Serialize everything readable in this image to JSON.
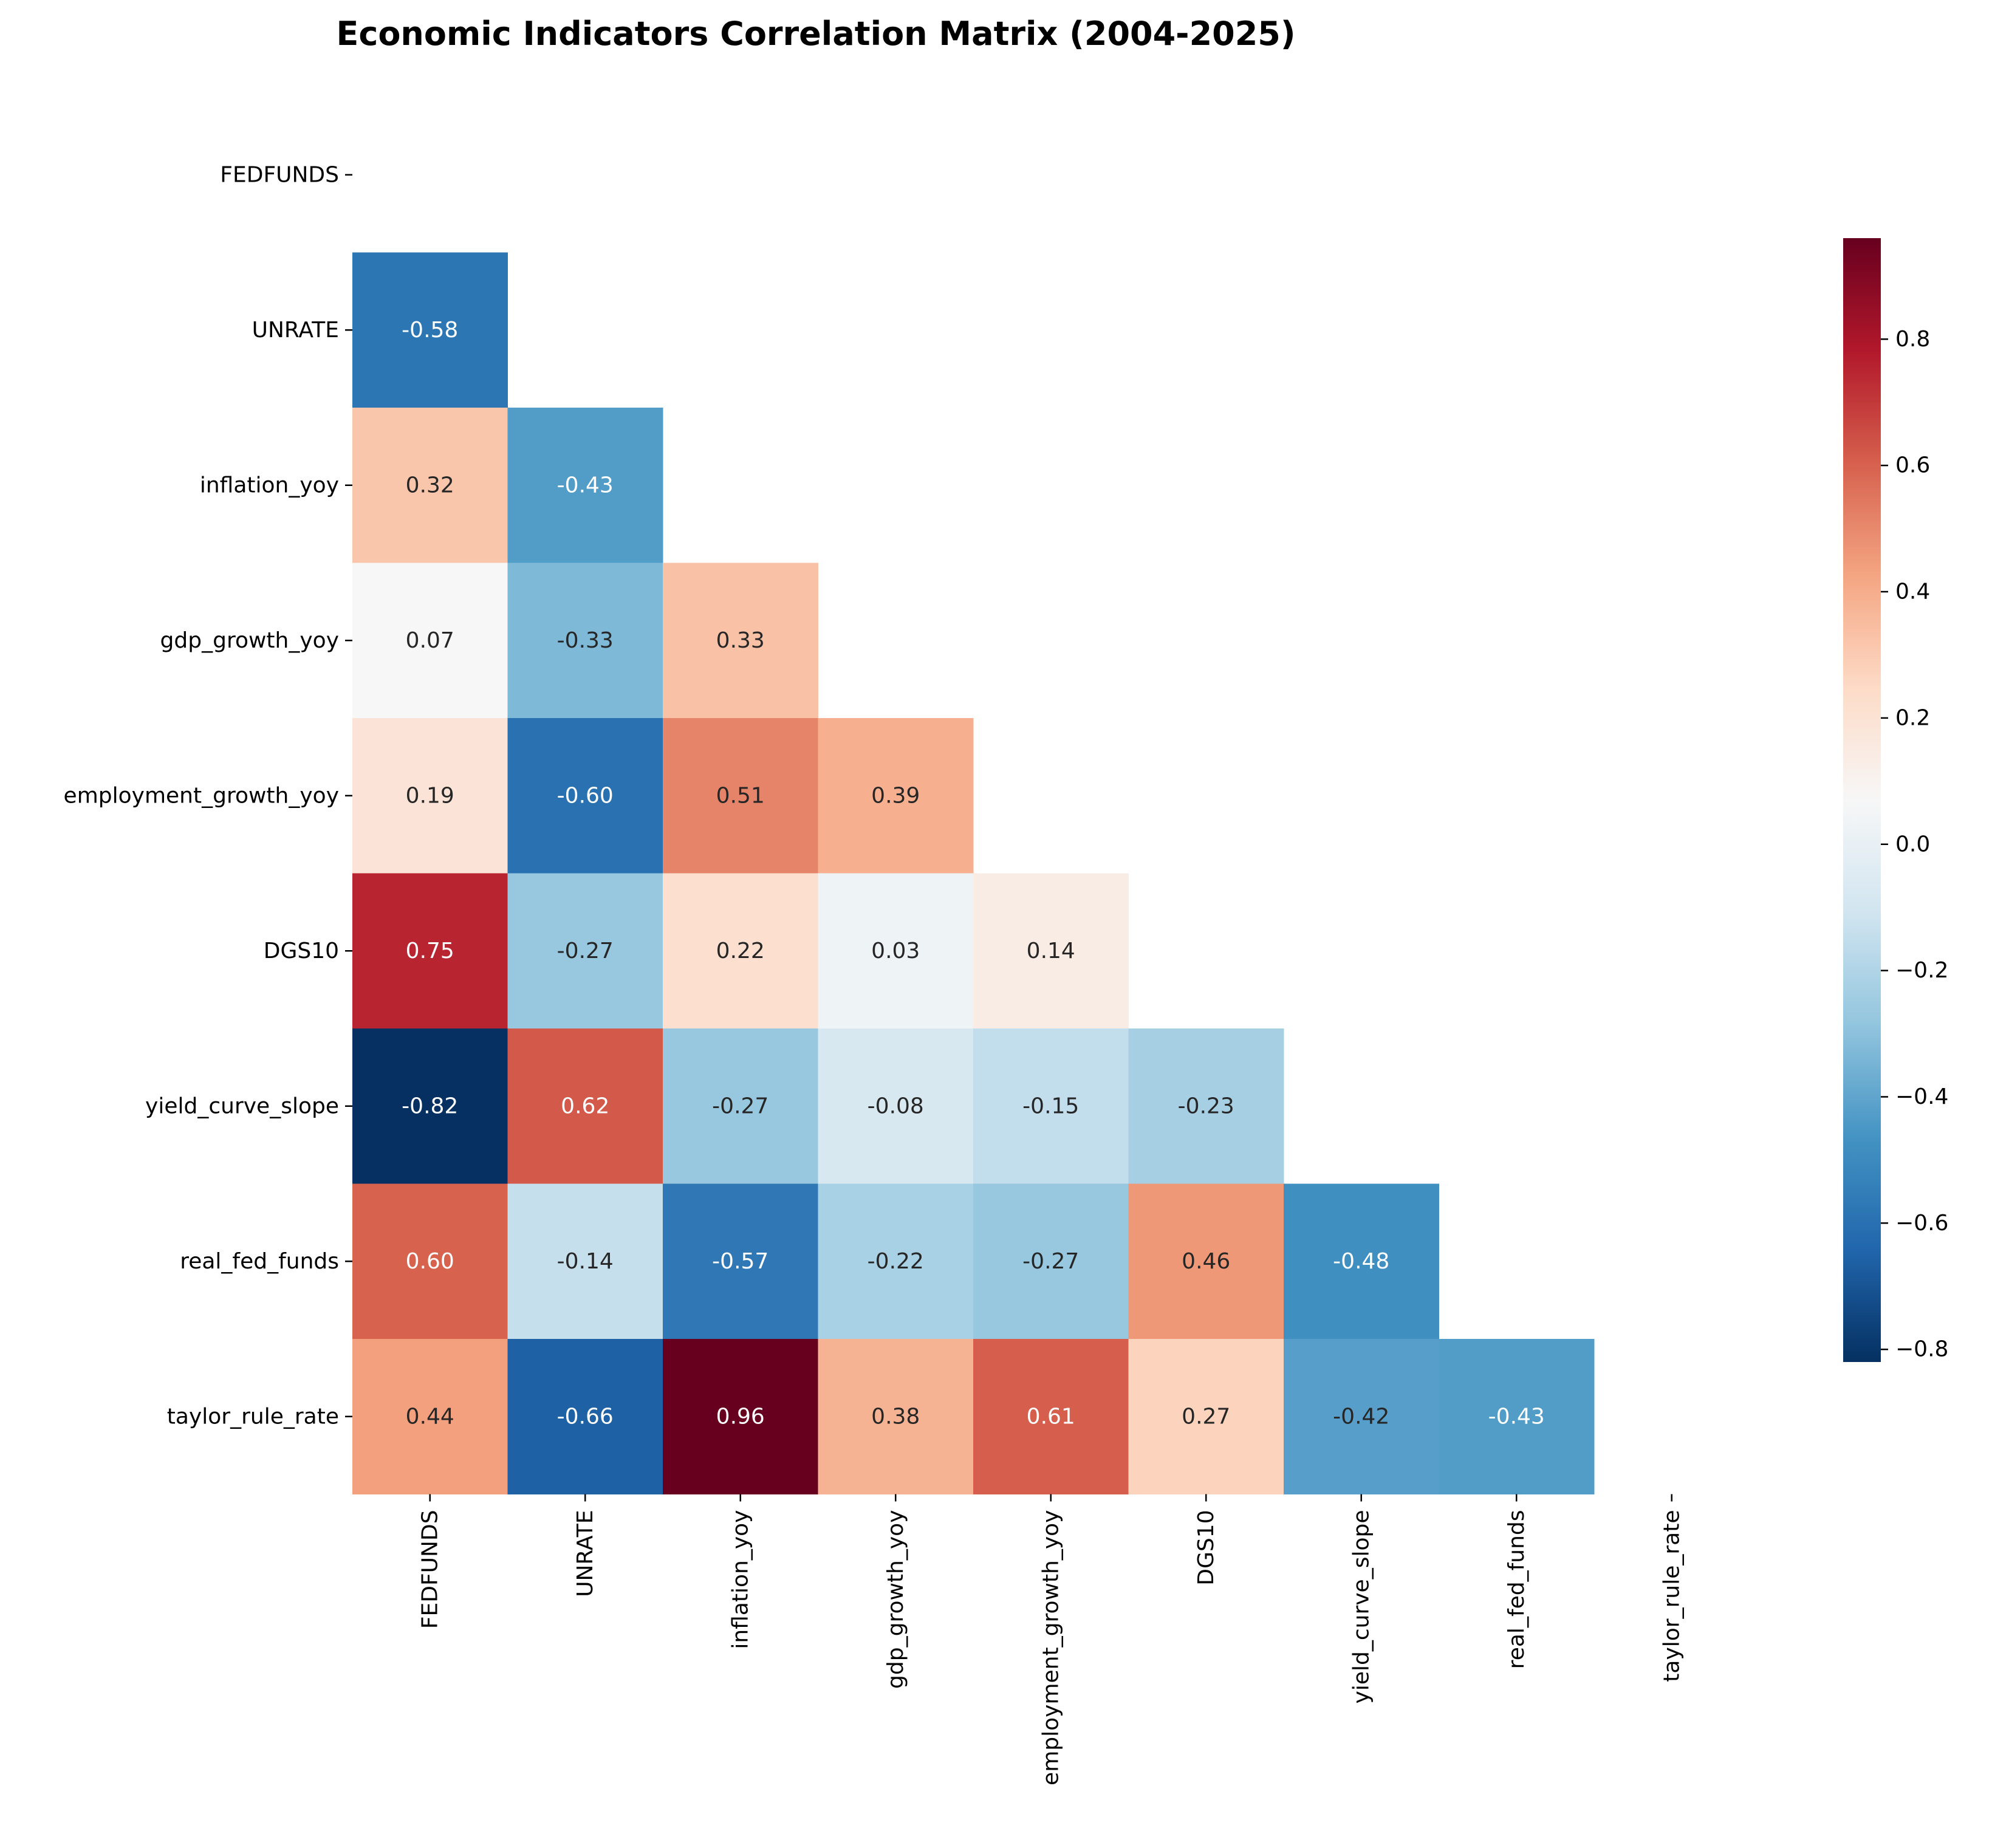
{
  "chart_data": {
    "type": "heatmap",
    "title": "Economic Indicators Correlation Matrix (2004-2025)",
    "variables": [
      "FEDFUNDS",
      "UNRATE",
      "inflation_yoy",
      "gdp_growth_yoy",
      "employment_growth_yoy",
      "DGS10",
      "yield_curve_slope",
      "real_fed_funds",
      "taylor_rule_rate"
    ],
    "mask": "upper triangle including diagonal",
    "lower_triangle": [
      [
        "-0.58"
      ],
      [
        "0.32",
        "-0.43"
      ],
      [
        "0.07",
        "-0.33",
        "0.33"
      ],
      [
        "0.19",
        "-0.60",
        "0.51",
        "0.39"
      ],
      [
        "0.75",
        "-0.27",
        "0.22",
        "0.03",
        "0.14"
      ],
      [
        "-0.82",
        "0.62",
        "-0.27",
        "-0.08",
        "-0.15",
        "-0.23"
      ],
      [
        "0.60",
        "-0.14",
        "-0.57",
        "-0.22",
        "-0.27",
        "0.46",
        "-0.48"
      ],
      [
        "0.44",
        "-0.66",
        "0.96",
        "0.38",
        "0.61",
        "0.27",
        "-0.42",
        "-0.43"
      ]
    ],
    "colormap": "RdBu_r",
    "vmin": -0.82,
    "vmax": 0.96,
    "colorbar_ticks": [
      "0.8",
      "0.6",
      "0.4",
      "0.2",
      "0.0",
      "−0.2",
      "−0.4",
      "−0.6",
      "−0.8"
    ],
    "colorbar_tick_values": [
      0.8,
      0.6,
      0.4,
      0.2,
      0.0,
      -0.2,
      -0.4,
      -0.6,
      -0.8
    ]
  }
}
